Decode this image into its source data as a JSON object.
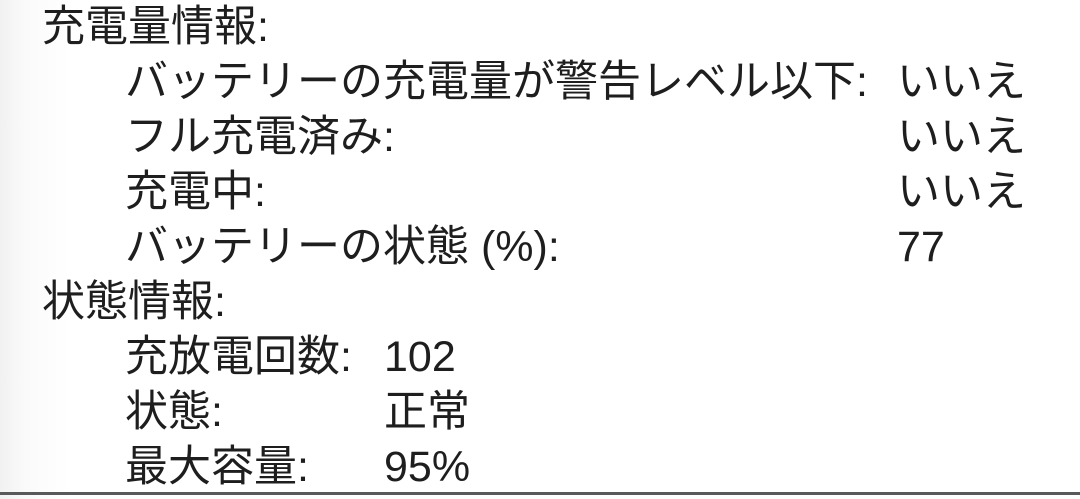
{
  "panel": {
    "text_color": "#1e1e1e",
    "background_color": "#ffffff",
    "divider_color": "#59595b"
  },
  "sections": [
    {
      "title": "充電量情報:",
      "rows": [
        {
          "label": "バッテリーの充電量が警告レベル以下:",
          "value": "いいえ"
        },
        {
          "label": "フル充電済み:",
          "value": "いいえ"
        },
        {
          "label": "充電中:",
          "value": "いいえ"
        },
        {
          "label": "バッテリーの状態 (%):",
          "value": "77"
        }
      ]
    },
    {
      "title": "状態情報:",
      "rows": [
        {
          "label": "充放電回数:",
          "value": "102"
        },
        {
          "label": "状態:",
          "value": "正常"
        },
        {
          "label": "最大容量:",
          "value": "95%"
        }
      ]
    }
  ]
}
